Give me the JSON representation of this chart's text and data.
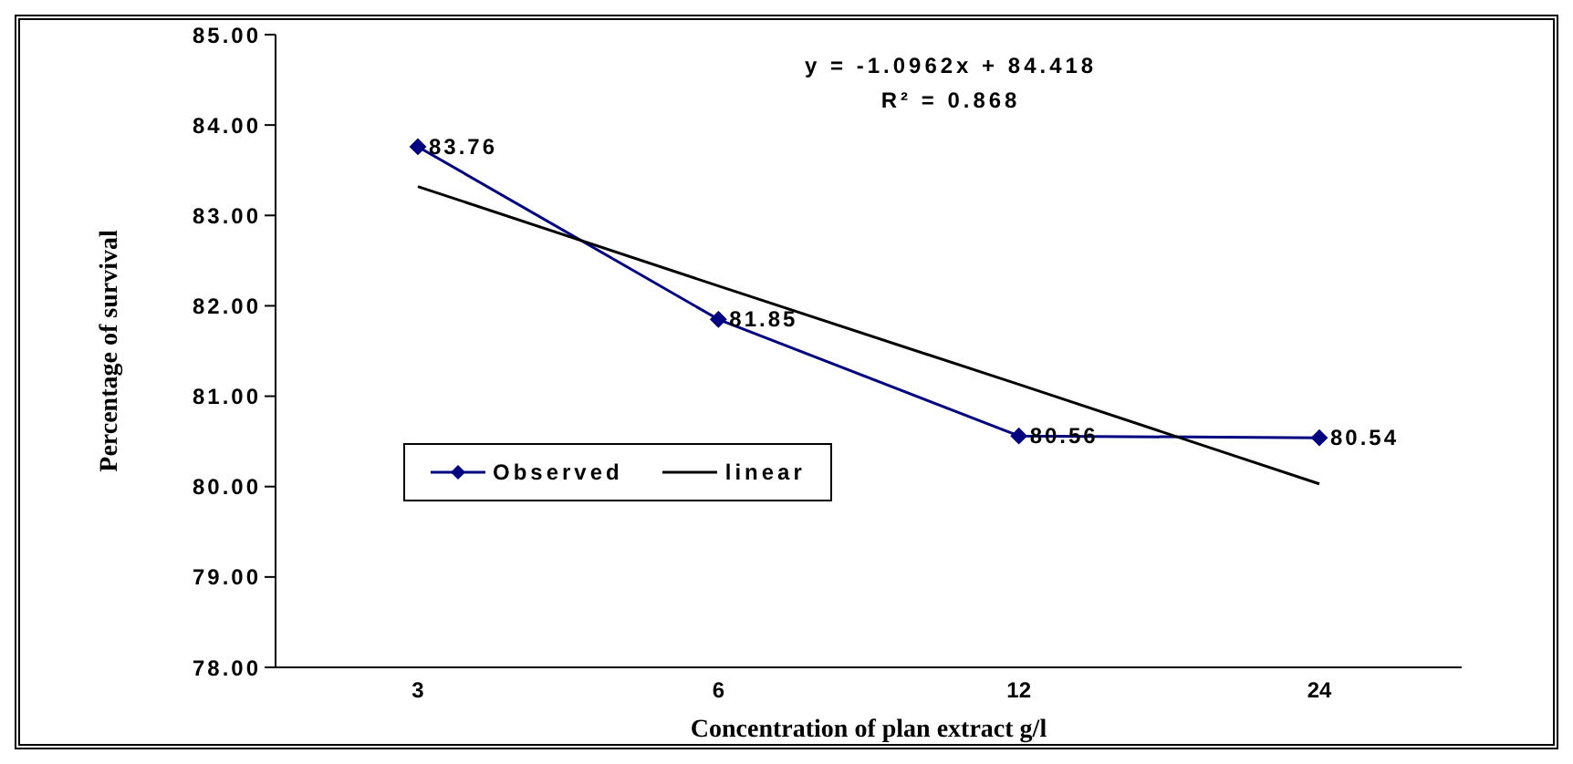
{
  "chart_data": {
    "type": "line",
    "xlabel": "Concentration of plan extract g/l",
    "ylabel": "Percentage of survival",
    "categories": [
      "3",
      "6",
      "12",
      "24"
    ],
    "series": [
      {
        "name": "Observed",
        "color": "#000080",
        "marker": "diamond",
        "values": [
          83.76,
          81.85,
          80.56,
          80.54
        ],
        "value_labels": [
          "83.76",
          "81.85",
          "80.56",
          "80.54"
        ]
      },
      {
        "name": "linear",
        "color": "#000000",
        "marker": "none",
        "values": [
          83.32,
          82.22,
          81.13,
          80.03
        ]
      }
    ],
    "ylim": [
      78,
      85
    ],
    "yticks": [
      {
        "value": 78,
        "label": "78.00"
      },
      {
        "value": 79,
        "label": "79.00"
      },
      {
        "value": 80,
        "label": "80.00"
      },
      {
        "value": 81,
        "label": "81.00"
      },
      {
        "value": 82,
        "label": "82.00"
      },
      {
        "value": 83,
        "label": "83.00"
      },
      {
        "value": 84,
        "label": "84.00"
      },
      {
        "value": 85,
        "label": "85.00"
      }
    ],
    "annotations": [
      "y = -1.0962x + 84.418",
      "R² = 0.868"
    ],
    "grid": false,
    "legend": "bottom left",
    "line_style": "solid"
  }
}
